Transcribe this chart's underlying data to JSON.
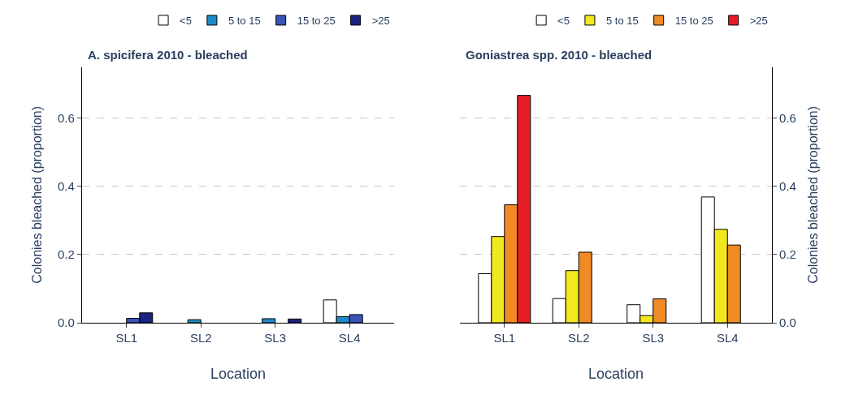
{
  "chart_data": [
    {
      "type": "bar",
      "title": "A. spicifera 2010 - bleached",
      "xlabel": "Location",
      "ylabel": "Colonies bleached (proportion)",
      "categories": [
        "SL1",
        "SL2",
        "SL3",
        "SL4"
      ],
      "series": [
        {
          "name": "<5",
          "color": "#ffffff",
          "values": [
            null,
            null,
            null,
            0.067
          ]
        },
        {
          "name": "5 to 15",
          "color": "#1e8bc9",
          "values": [
            null,
            0.009,
            0.012,
            0.018
          ]
        },
        {
          "name": "15 to 25",
          "color": "#3a54b4",
          "values": [
            0.013,
            null,
            null,
            0.024
          ]
        },
        {
          "name": ">25",
          "color": "#1a237e",
          "values": [
            0.029,
            null,
            0.011,
            null
          ]
        }
      ],
      "ylim": [
        0,
        0.75
      ],
      "yticks": [
        {
          "value": 0,
          "label": "0.0"
        },
        0.2,
        0.4,
        0.6
      ],
      "grid": "y",
      "legend": "top right"
    },
    {
      "type": "bar",
      "title": "Goniastrea spp. 2010 - bleached",
      "xlabel": "Location",
      "ylabel": "Colonies bleached (proportion)",
      "categories": [
        "SL1",
        "SL2",
        "SL3",
        "SL4"
      ],
      "series": [
        {
          "name": "<5",
          "color": "#ffffff",
          "values": [
            0.144,
            0.071,
            0.053,
            0.369
          ]
        },
        {
          "name": "5 to 15",
          "color": "#f2e81e",
          "values": [
            0.253,
            0.153,
            0.021,
            0.274
          ]
        },
        {
          "name": "15 to 25",
          "color": "#f08a24",
          "values": [
            0.346,
            0.207,
            0.07,
            0.228
          ]
        },
        {
          "name": ">25",
          "color": "#e51e25",
          "values": [
            0.667,
            null,
            null,
            null
          ]
        }
      ],
      "ylim": [
        0,
        0.75
      ],
      "yticks": [
        {
          "value": 0,
          "label": "0.0"
        },
        0.2,
        0.4,
        0.6
      ],
      "grid": "y",
      "legend": "top right"
    }
  ]
}
